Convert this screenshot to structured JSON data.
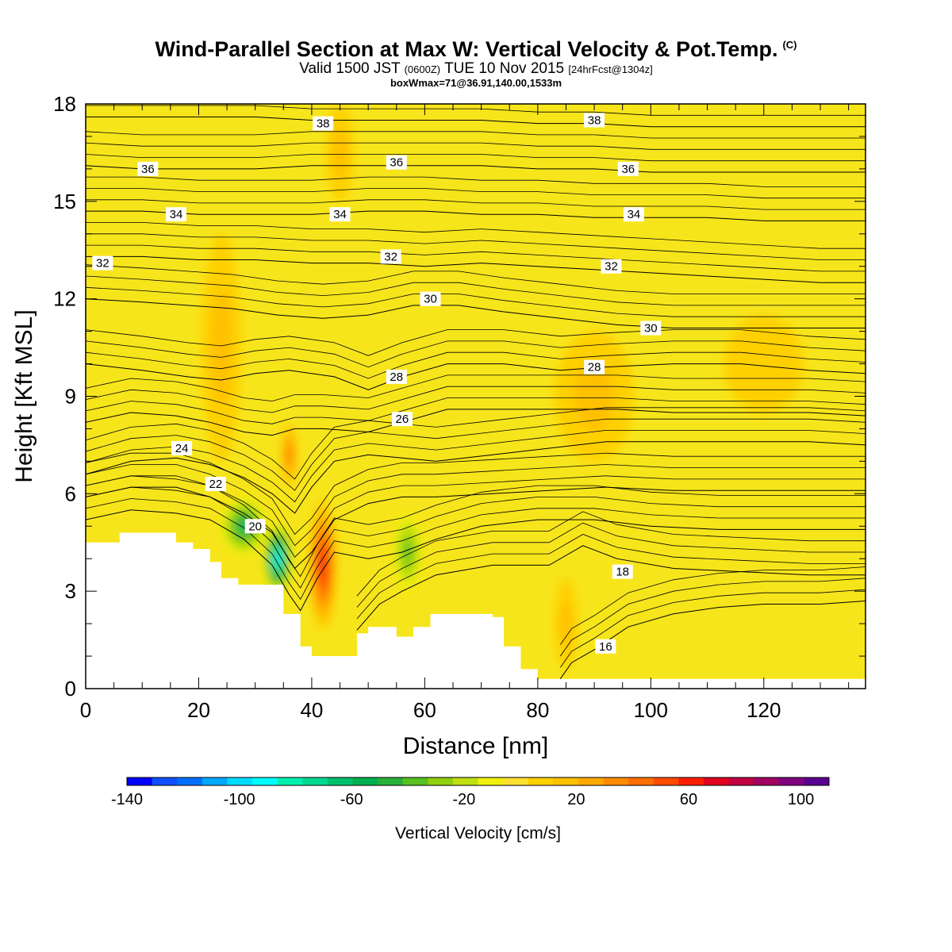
{
  "title": {
    "main": "Wind-Parallel Section at Max W: Vertical Velocity & Pot.Temp.",
    "copyright": "(C)",
    "valid_prefix": "Valid 1500 JST",
    "valid_z": "(0600Z)",
    "valid_date": "TUE 10 Nov 2015",
    "forecast": "[24hrFcst@1304z]",
    "boxwmax": "boxWmax=71@36.91,140.00,1533m"
  },
  "colors": {
    "background_fill": "#f7e51b",
    "terrain": "#ffffff",
    "contour": "#000000",
    "colorbar": [
      "#0000ff",
      "#0f4fff",
      "#006fff",
      "#00a8ff",
      "#00dcff",
      "#00ffff",
      "#00f0b0",
      "#00d890",
      "#00c070",
      "#00b050",
      "#28b03c",
      "#58c020",
      "#90d010",
      "#c0e010",
      "#f0f010",
      "#ffe030",
      "#ffd000",
      "#ffc000",
      "#ffa800",
      "#ff8c00",
      "#ff6e00",
      "#ff4a00",
      "#ff1e00",
      "#e0001e",
      "#c00040",
      "#a00060",
      "#800080",
      "#5a0090"
    ]
  },
  "chart_data": {
    "type": "heatmap",
    "xlabel": "Distance [nm]",
    "ylabel": "Height [Kft MSL]",
    "xlim": [
      0,
      138
    ],
    "ylim": [
      0,
      18
    ],
    "x_ticks": [
      0,
      20,
      40,
      60,
      80,
      100,
      120
    ],
    "y_ticks": [
      0,
      3,
      6,
      9,
      12,
      15,
      18
    ],
    "colorbar": {
      "title": "Vertical Velocity [cm/s]",
      "range": [
        -140,
        110
      ],
      "tick_values": [
        -140,
        -100,
        -60,
        -20,
        20,
        60,
        100
      ],
      "tick_labels": [
        "-140",
        "-100",
        "-60",
        "-20",
        "20",
        "60",
        "100"
      ]
    },
    "terrain_profile": [
      [
        0,
        4.5
      ],
      [
        6,
        4.5
      ],
      [
        6,
        4.8
      ],
      [
        16,
        4.8
      ],
      [
        16,
        4.5
      ],
      [
        19,
        4.5
      ],
      [
        19,
        4.3
      ],
      [
        22,
        4.3
      ],
      [
        22,
        3.9
      ],
      [
        24,
        3.9
      ],
      [
        24,
        3.4
      ],
      [
        27,
        3.4
      ],
      [
        27,
        3.2
      ],
      [
        35,
        3.2
      ],
      [
        35,
        2.3
      ],
      [
        38,
        2.3
      ],
      [
        38,
        1.3
      ],
      [
        40,
        1.3
      ],
      [
        40,
        1.0
      ],
      [
        48,
        1.0
      ],
      [
        48,
        1.7
      ],
      [
        50,
        1.7
      ],
      [
        50,
        1.9
      ],
      [
        55,
        1.9
      ],
      [
        55,
        1.6
      ],
      [
        58,
        1.6
      ],
      [
        58,
        1.9
      ],
      [
        61,
        1.9
      ],
      [
        61,
        2.3
      ],
      [
        72,
        2.3
      ],
      [
        72,
        2.2
      ],
      [
        74,
        2.2
      ],
      [
        74,
        1.3
      ],
      [
        77,
        1.3
      ],
      [
        77,
        0.6
      ],
      [
        80,
        0.6
      ],
      [
        80,
        0.3
      ],
      [
        138,
        0.3
      ]
    ],
    "theta_contours": [
      {
        "label": "16",
        "points": [
          [
            84,
            0.3
          ],
          [
            86,
            0.8
          ],
          [
            90,
            1.2
          ],
          [
            96,
            1.9
          ],
          [
            104,
            2.3
          ],
          [
            112,
            2.5
          ],
          [
            120,
            2.6
          ],
          [
            130,
            2.6
          ],
          [
            138,
            2.7
          ]
        ],
        "label_at": [
          92,
          1.3
        ]
      },
      {
        "label": "18",
        "points": [
          [
            48,
            1.8
          ],
          [
            52,
            2.6
          ],
          [
            56,
            3.0
          ],
          [
            62,
            3.5
          ],
          [
            72,
            3.8
          ],
          [
            82,
            3.8
          ],
          [
            88,
            4.4
          ],
          [
            94,
            4.0
          ],
          [
            104,
            3.7
          ],
          [
            116,
            3.6
          ],
          [
            128,
            3.5
          ],
          [
            138,
            3.5
          ]
        ],
        "label_at": [
          95,
          3.6
        ]
      },
      {
        "label": "20",
        "points": [
          [
            0,
            5.2
          ],
          [
            8,
            5.5
          ],
          [
            16,
            5.4
          ],
          [
            22,
            5.2
          ],
          [
            28,
            4.6
          ],
          [
            33,
            3.8
          ],
          [
            36,
            2.9
          ],
          [
            38,
            2.4
          ],
          [
            41,
            3.4
          ],
          [
            44,
            4.2
          ],
          [
            50,
            4.0
          ],
          [
            56,
            4.2
          ],
          [
            62,
            4.6
          ],
          [
            70,
            5.0
          ],
          [
            80,
            5.2
          ],
          [
            90,
            5.2
          ],
          [
            100,
            5.0
          ],
          [
            112,
            4.9
          ],
          [
            124,
            4.9
          ],
          [
            138,
            4.9
          ]
        ],
        "label_at": [
          30,
          5.0
        ]
      },
      {
        "label": "22",
        "points": [
          [
            0,
            5.9
          ],
          [
            8,
            6.2
          ],
          [
            16,
            6.2
          ],
          [
            22,
            5.9
          ],
          [
            28,
            5.4
          ],
          [
            33,
            4.8
          ],
          [
            37,
            3.7
          ],
          [
            40,
            4.2
          ],
          [
            44,
            5.2
          ],
          [
            50,
            5.7
          ],
          [
            56,
            5.9
          ],
          [
            62,
            5.9
          ],
          [
            72,
            6.0
          ],
          [
            82,
            6.1
          ],
          [
            92,
            6.2
          ],
          [
            104,
            6.1
          ],
          [
            116,
            6.1
          ],
          [
            128,
            6.1
          ],
          [
            138,
            6.1
          ]
        ],
        "label_at": [
          23,
          6.3
        ]
      },
      {
        "label": "24",
        "points": [
          [
            0,
            6.6
          ],
          [
            8,
            7.0
          ],
          [
            16,
            7.1
          ],
          [
            22,
            6.9
          ],
          [
            28,
            6.5
          ],
          [
            33,
            6.0
          ],
          [
            37,
            5.4
          ],
          [
            40,
            6.2
          ],
          [
            44,
            7.0
          ],
          [
            50,
            7.2
          ],
          [
            56,
            7.1
          ],
          [
            62,
            7.0
          ],
          [
            72,
            7.2
          ],
          [
            82,
            7.4
          ],
          [
            92,
            7.6
          ],
          [
            104,
            7.6
          ],
          [
            116,
            7.6
          ],
          [
            128,
            7.6
          ],
          [
            138,
            7.5
          ]
        ],
        "label_at": [
          17,
          7.4
        ]
      },
      {
        "label": "26",
        "points": [
          [
            0,
            8.2
          ],
          [
            8,
            8.5
          ],
          [
            16,
            8.4
          ],
          [
            22,
            8.2
          ],
          [
            28,
            7.9
          ],
          [
            33,
            7.8
          ],
          [
            37,
            8.0
          ],
          [
            42,
            8.0
          ],
          [
            50,
            7.9
          ],
          [
            56,
            8.2
          ],
          [
            64,
            8.6
          ],
          [
            74,
            8.6
          ],
          [
            84,
            8.6
          ],
          [
            94,
            8.6
          ],
          [
            104,
            8.5
          ],
          [
            116,
            8.5
          ],
          [
            128,
            8.5
          ],
          [
            138,
            8.4
          ]
        ],
        "label_at": [
          56,
          8.3
        ]
      },
      {
        "label": "28",
        "points": [
          [
            0,
            10.0
          ],
          [
            10,
            9.8
          ],
          [
            18,
            9.6
          ],
          [
            24,
            9.5
          ],
          [
            30,
            9.7
          ],
          [
            36,
            9.8
          ],
          [
            44,
            9.6
          ],
          [
            50,
            9.2
          ],
          [
            56,
            9.6
          ],
          [
            64,
            10.0
          ],
          [
            74,
            10.0
          ],
          [
            84,
            9.8
          ],
          [
            92,
            9.9
          ],
          [
            104,
            10.0
          ],
          [
            116,
            10.0
          ],
          [
            128,
            9.8
          ],
          [
            138,
            9.7
          ]
        ],
        "label_at": [
          55,
          9.6
        ]
      },
      {
        "label": "28",
        "points": [],
        "label_at": [
          90,
          9.9
        ]
      },
      {
        "label": "30",
        "points": [
          [
            0,
            12.0
          ],
          [
            10,
            11.9
          ],
          [
            18,
            11.8
          ],
          [
            26,
            11.7
          ],
          [
            34,
            11.5
          ],
          [
            42,
            11.4
          ],
          [
            50,
            11.5
          ],
          [
            58,
            11.8
          ],
          [
            66,
            11.8
          ],
          [
            74,
            11.6
          ],
          [
            84,
            11.4
          ],
          [
            94,
            11.2
          ],
          [
            104,
            11.1
          ],
          [
            116,
            11.1
          ],
          [
            128,
            11.1
          ],
          [
            138,
            11.1
          ]
        ],
        "label_at": [
          61,
          12.0
        ]
      },
      {
        "label": "30",
        "points": [],
        "label_at": [
          100,
          11.1
        ]
      },
      {
        "label": "32",
        "points": [
          [
            0,
            13.3
          ],
          [
            10,
            13.3
          ],
          [
            20,
            13.2
          ],
          [
            30,
            13.2
          ],
          [
            40,
            13.1
          ],
          [
            50,
            13.1
          ],
          [
            60,
            13.0
          ],
          [
            70,
            13.1
          ],
          [
            80,
            13.0
          ],
          [
            90,
            12.9
          ],
          [
            100,
            12.8
          ],
          [
            110,
            12.7
          ],
          [
            120,
            12.6
          ],
          [
            130,
            12.5
          ],
          [
            138,
            12.5
          ]
        ],
        "label_at": [
          54,
          13.3
        ]
      },
      {
        "label": "32",
        "points": [],
        "label_at": [
          93,
          13.0
        ]
      },
      {
        "label": "32",
        "points": [],
        "label_at": [
          3,
          13.1
        ]
      },
      {
        "label": "34",
        "points": [
          [
            0,
            14.7
          ],
          [
            10,
            14.7
          ],
          [
            20,
            14.6
          ],
          [
            30,
            14.6
          ],
          [
            40,
            14.6
          ],
          [
            50,
            14.7
          ],
          [
            60,
            14.7
          ],
          [
            70,
            14.6
          ],
          [
            80,
            14.6
          ],
          [
            90,
            14.5
          ],
          [
            100,
            14.5
          ],
          [
            110,
            14.5
          ],
          [
            120,
            14.4
          ],
          [
            130,
            14.4
          ],
          [
            138,
            14.4
          ]
        ],
        "label_at": [
          16,
          14.6
        ]
      },
      {
        "label": "34",
        "points": [],
        "label_at": [
          45,
          14.6
        ]
      },
      {
        "label": "34",
        "points": [],
        "label_at": [
          97,
          14.6
        ]
      },
      {
        "label": "36",
        "points": [
          [
            0,
            16.1
          ],
          [
            10,
            16.0
          ],
          [
            20,
            16.0
          ],
          [
            30,
            16.0
          ],
          [
            40,
            16.1
          ],
          [
            50,
            16.1
          ],
          [
            60,
            16.1
          ],
          [
            70,
            16.1
          ],
          [
            80,
            16.0
          ],
          [
            90,
            16.0
          ],
          [
            100,
            15.9
          ],
          [
            110,
            15.9
          ],
          [
            120,
            15.9
          ],
          [
            130,
            15.9
          ],
          [
            138,
            15.9
          ]
        ],
        "label_at": [
          11,
          16.0
        ]
      },
      {
        "label": "36",
        "points": [],
        "label_at": [
          55,
          16.2
        ]
      },
      {
        "label": "36",
        "points": [],
        "label_at": [
          96,
          16.0
        ]
      },
      {
        "label": "38",
        "points": [
          [
            0,
            17.6
          ],
          [
            10,
            17.6
          ],
          [
            20,
            17.6
          ],
          [
            30,
            17.6
          ],
          [
            40,
            17.5
          ],
          [
            50,
            17.5
          ],
          [
            60,
            17.5
          ],
          [
            70,
            17.5
          ],
          [
            80,
            17.4
          ],
          [
            90,
            17.4
          ],
          [
            100,
            17.3
          ],
          [
            110,
            17.3
          ],
          [
            120,
            17.3
          ],
          [
            130,
            17.3
          ],
          [
            138,
            17.3
          ]
        ],
        "label_at": [
          42,
          17.4
        ]
      },
      {
        "label": "38",
        "points": [],
        "label_at": [
          90,
          17.5
        ]
      }
    ],
    "velocity_blobs": [
      {
        "cx": 42,
        "cy": 3.8,
        "rx": 2.5,
        "ry": 2.0,
        "w": 71
      },
      {
        "cx": 36,
        "cy": 7.2,
        "rx": 1.4,
        "ry": 1.0,
        "w": 45
      },
      {
        "cx": 34,
        "cy": 4.0,
        "rx": 2.5,
        "ry": 1.1,
        "w": -100
      },
      {
        "cx": 28,
        "cy": 5.0,
        "rx": 4.0,
        "ry": 0.9,
        "w": -60
      },
      {
        "cx": 57,
        "cy": 4.2,
        "rx": 2.5,
        "ry": 1.2,
        "w": -40
      },
      {
        "cx": 24,
        "cy": 10.5,
        "rx": 3.5,
        "ry": 3.5,
        "w": 15
      },
      {
        "cx": 90,
        "cy": 9.0,
        "rx": 7.0,
        "ry": 2.0,
        "w": 15
      },
      {
        "cx": 85,
        "cy": 2.0,
        "rx": 2.0,
        "ry": 1.4,
        "w": 20
      },
      {
        "cx": 45,
        "cy": 16.5,
        "rx": 2.5,
        "ry": 1.5,
        "w": 15
      },
      {
        "cx": 120,
        "cy": 10.0,
        "rx": 7.0,
        "ry": 1.5,
        "w": 10
      }
    ]
  }
}
